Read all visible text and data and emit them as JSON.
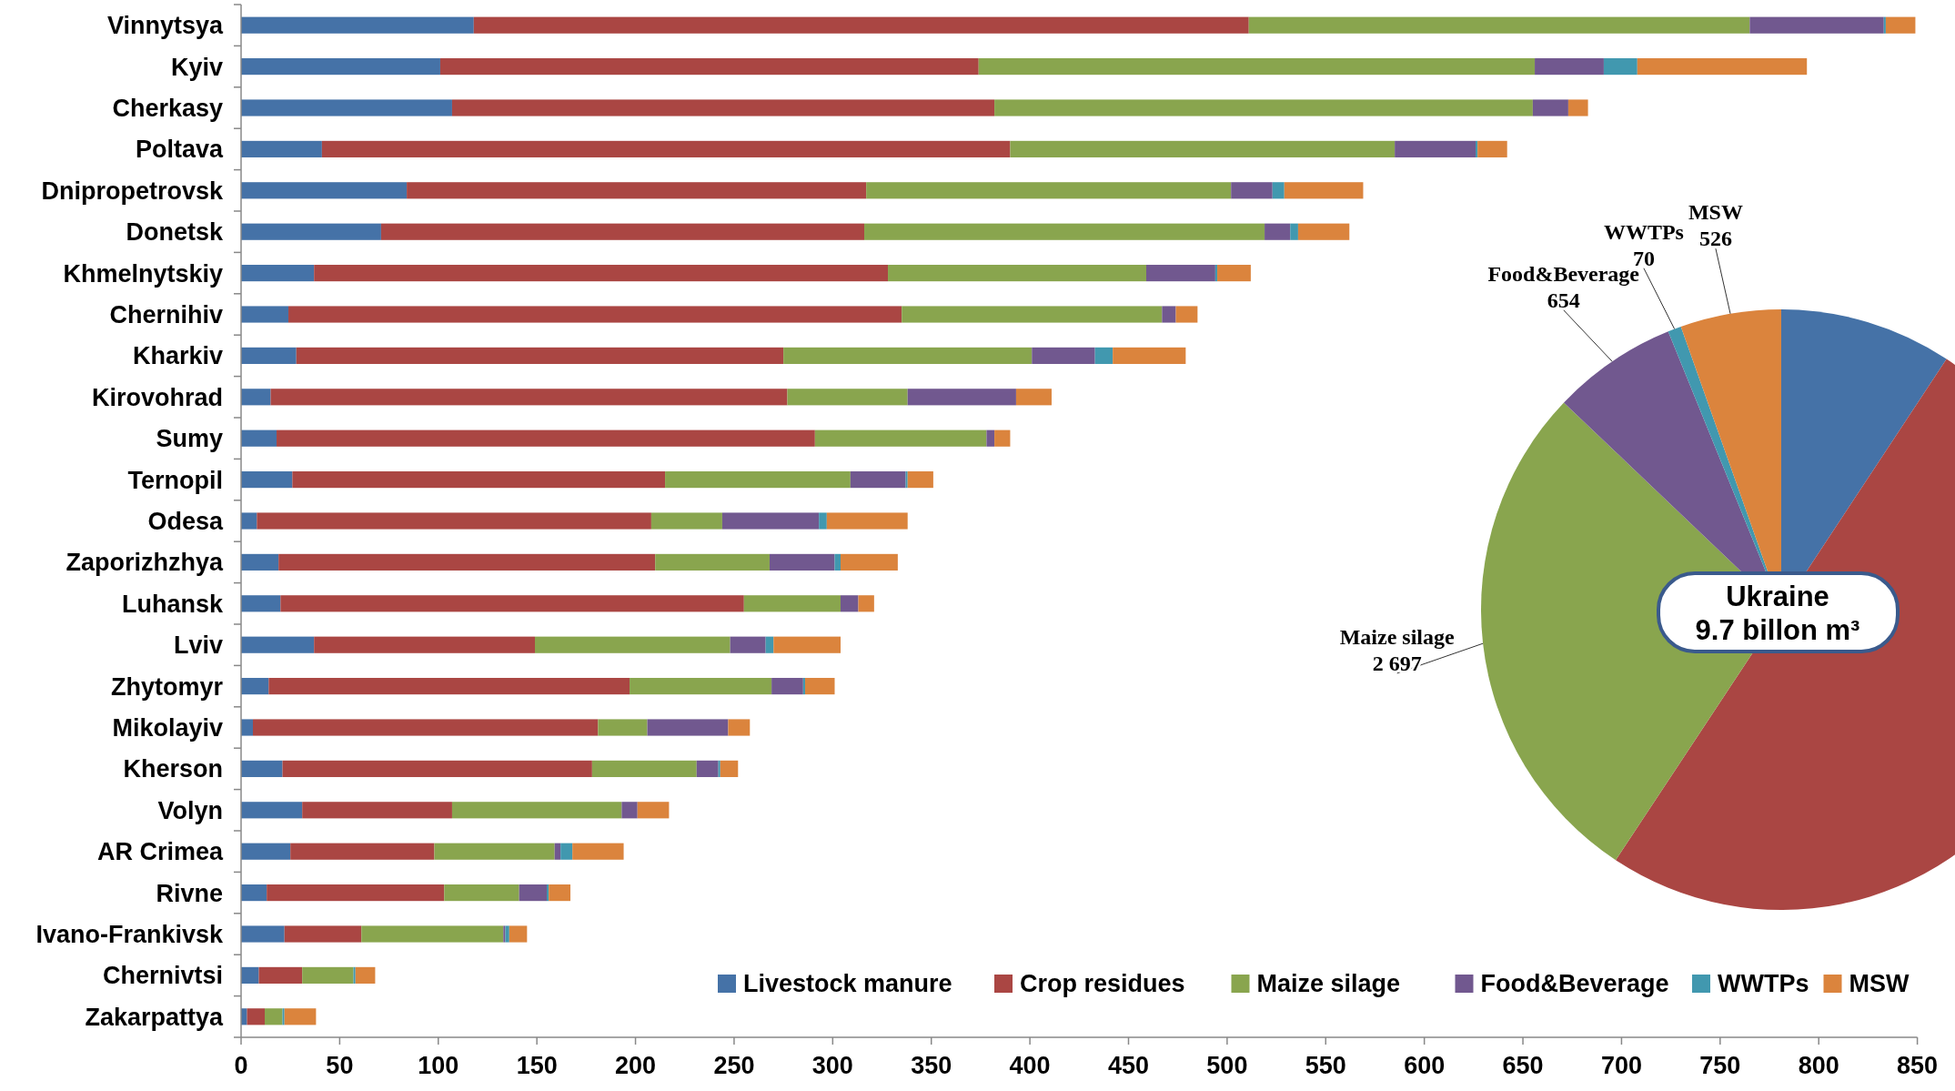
{
  "chart_data": [
    {
      "type": "bar",
      "orientation": "horizontal",
      "stacked": true,
      "categories": [
        "Vinnytsya",
        "Kyiv",
        "Cherkasy",
        "Poltava",
        "Dnipropetrovsk",
        "Donetsk",
        "Khmelnytskiy",
        "Chernihiv",
        "Kharkiv",
        "Kirovohrad",
        "Sumy",
        "Ternopil",
        "Odesa",
        "Zaporizhzhya",
        "Luhansk",
        "Lviv",
        "Zhytomyr",
        "Mikolayiv",
        "Kherson",
        "Volyn",
        "AR Crimea",
        "Rivne",
        "Ivano-Frankivsk",
        "Chernivtsi",
        "Zakarpattya"
      ],
      "series": [
        {
          "name": "Livestock manure",
          "color": "#4572a7",
          "values": [
            118,
            101,
            107,
            41,
            84,
            71,
            37,
            24,
            28,
            15,
            18,
            26,
            8,
            19,
            20,
            37,
            14,
            6,
            21,
            31,
            25,
            13,
            22,
            9,
            3
          ]
        },
        {
          "name": "Crop residues",
          "color": "#aa4643",
          "values": [
            393,
            273,
            275,
            349,
            233,
            245,
            291,
            311,
            247,
            262,
            273,
            189,
            200,
            191,
            235,
            112,
            183,
            175,
            157,
            76,
            73,
            90,
            39,
            22,
            9
          ]
        },
        {
          "name": "Maize silage",
          "color": "#89a54e",
          "values": [
            254,
            282,
            273,
            195,
            185,
            203,
            131,
            132,
            126,
            61,
            87,
            94,
            36,
            58,
            49,
            99,
            72,
            25,
            53,
            86,
            61,
            38,
            72,
            26,
            9
          ]
        },
        {
          "name": "Food&Beverage",
          "color": "#71588f",
          "values": [
            68,
            35,
            18,
            41,
            21,
            13,
            35,
            7,
            32,
            55,
            4,
            28,
            49,
            33,
            9,
            18,
            16,
            41,
            11,
            8,
            3,
            14,
            1,
            0,
            0
          ]
        },
        {
          "name": "WWTPs",
          "color": "#4198af",
          "values": [
            1,
            17,
            0,
            1,
            6,
            4,
            1,
            0,
            9,
            0,
            0,
            1,
            4,
            3,
            0,
            4,
            1,
            0,
            1,
            0,
            6,
            1,
            2,
            1,
            1
          ]
        },
        {
          "name": "MSW",
          "color": "#db843d",
          "values": [
            15,
            86,
            10,
            15,
            40,
            26,
            17,
            11,
            37,
            18,
            8,
            13,
            41,
            29,
            8,
            34,
            15,
            11,
            9,
            16,
            26,
            11,
            9,
            10,
            16
          ]
        }
      ],
      "xlim": [
        0,
        850
      ],
      "xticks": [
        0,
        50,
        100,
        150,
        200,
        250,
        300,
        350,
        400,
        450,
        500,
        550,
        600,
        650,
        700,
        750,
        800,
        850
      ],
      "legend": "bottom right"
    },
    {
      "type": "pie",
      "title": "Ukraine",
      "subtitle": "9.7 billon m³",
      "categories": [
        null,
        null,
        "Maize silage",
        "Food&Beverage",
        "WWTPs",
        "MSW"
      ],
      "values": [
        900,
        4850,
        2697,
        654,
        70,
        526
      ],
      "value_labels": [
        null,
        null,
        "2 697",
        "654",
        "70",
        "526"
      ],
      "colors": [
        "#4572a7",
        "#aa4643",
        "#89a54e",
        "#71588f",
        "#4198af",
        "#db843d"
      ]
    }
  ]
}
